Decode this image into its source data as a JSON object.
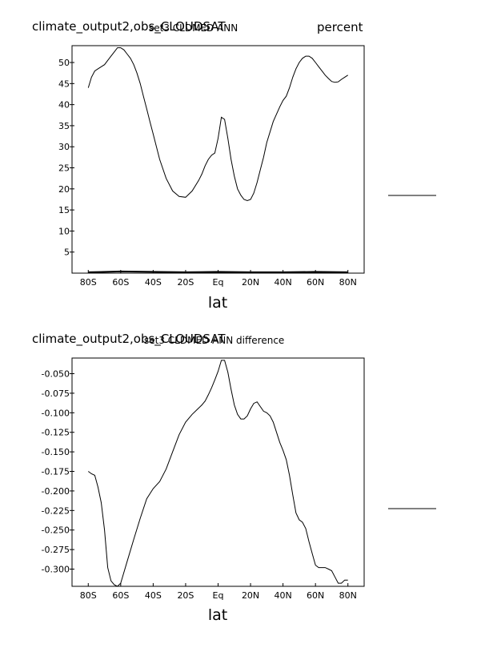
{
  "chart_data": [
    {
      "type": "line",
      "title": "climate_output2,obs_CLOUDSAT",
      "subtitle": "set3 CLDMED ANN",
      "units": "percent",
      "xlabel": "lat",
      "ylabel": "",
      "xlim": [
        -90,
        90
      ],
      "ylim": [
        0,
        54
      ],
      "x_tick_values": [
        -80,
        -60,
        -40,
        -20,
        0,
        20,
        40,
        60,
        80
      ],
      "x_tick_labels": [
        "80S",
        "60S",
        "40S",
        "20S",
        "Eq",
        "20N",
        "40N",
        "60N",
        "80N"
      ],
      "y_ticks": [
        5,
        10,
        15,
        20,
        25,
        30,
        35,
        40,
        45,
        50
      ],
      "series": [
        {
          "x": [
            -80,
            -78,
            -76,
            -74,
            -72,
            -70,
            -68,
            -66,
            -64,
            -62,
            -60,
            -58,
            -56,
            -54,
            -52,
            -50,
            -48,
            -46,
            -44,
            -42,
            -40,
            -36,
            -32,
            -28,
            -24,
            -20,
            -16,
            -12,
            -10,
            -8,
            -6,
            -4,
            -2,
            0,
            2,
            4,
            6,
            8,
            10,
            12,
            14,
            16,
            18,
            20,
            22,
            24,
            26,
            28,
            30,
            34,
            38,
            40,
            42,
            44,
            46,
            48,
            50,
            52,
            54,
            56,
            58,
            60,
            62,
            64,
            66,
            68,
            70,
            72,
            74,
            76,
            78,
            80
          ],
          "y": [
            44,
            46.5,
            48,
            48.5,
            49,
            49.5,
            50.5,
            51.5,
            52.5,
            53.5,
            53.5,
            53,
            52,
            51,
            49.5,
            47.5,
            45,
            42,
            39,
            36,
            33,
            27,
            22.5,
            19.5,
            18.2,
            18,
            19.5,
            22,
            23.5,
            25.5,
            27,
            28,
            28.5,
            32,
            37,
            36.5,
            32,
            27,
            23,
            20,
            18.5,
            17.5,
            17.2,
            17.5,
            19,
            21.5,
            24.5,
            27.5,
            31,
            36,
            39.5,
            41,
            42,
            44,
            46.5,
            48.5,
            50,
            51,
            51.5,
            51.5,
            51,
            50,
            49,
            48,
            47,
            46.2,
            45.5,
            45.3,
            45.4,
            46,
            46.5,
            47
          ]
        },
        {
          "x": [
            -80,
            -60,
            -40,
            -20,
            0,
            20,
            40,
            60,
            80
          ],
          "y": [
            0.2,
            0.4,
            0.3,
            0.2,
            0.3,
            0.2,
            0.2,
            0.3,
            0.2
          ]
        }
      ]
    },
    {
      "type": "line",
      "title": "climate_output2,obs_CLOUDSAT",
      "subtitle": "set3 CLDMED ANN difference",
      "units": "",
      "xlabel": "lat",
      "ylabel": "",
      "xlim": [
        -90,
        90
      ],
      "ylim": [
        -0.322,
        -0.03
      ],
      "x_tick_values": [
        -80,
        -60,
        -40,
        -20,
        0,
        20,
        40,
        60,
        80
      ],
      "x_tick_labels": [
        "80S",
        "60S",
        "40S",
        "20S",
        "Eq",
        "20N",
        "40N",
        "60N",
        "80N"
      ],
      "y_ticks": [
        -0.05,
        -0.075,
        -0.1,
        -0.125,
        -0.15,
        -0.175,
        -0.2,
        -0.225,
        -0.25,
        -0.275,
        -0.3
      ],
      "y_tick_labels": [
        "-0.050",
        "-0.075",
        "-0.100",
        "-0.125",
        "-0.150",
        "-0.175",
        "-0.200",
        "-0.225",
        "-0.250",
        "-0.275",
        "-0.300"
      ],
      "series": [
        {
          "x": [
            -80,
            -78,
            -76,
            -74,
            -72,
            -70,
            -68,
            -66,
            -64,
            -62,
            -60,
            -56,
            -52,
            -48,
            -44,
            -40,
            -36,
            -32,
            -28,
            -24,
            -20,
            -16,
            -12,
            -10,
            -8,
            -6,
            -4,
            -2,
            0,
            2,
            4,
            6,
            8,
            10,
            12,
            14,
            16,
            18,
            20,
            22,
            24,
            26,
            28,
            30,
            32,
            34,
            36,
            38,
            40,
            42,
            44,
            46,
            48,
            50,
            52,
            54,
            56,
            58,
            60,
            62,
            64,
            66,
            68,
            70,
            72,
            74,
            76,
            78,
            80
          ],
          "y": [
            -0.175,
            -0.178,
            -0.18,
            -0.195,
            -0.215,
            -0.25,
            -0.298,
            -0.315,
            -0.32,
            -0.322,
            -0.318,
            -0.29,
            -0.262,
            -0.235,
            -0.21,
            -0.197,
            -0.188,
            -0.172,
            -0.15,
            -0.128,
            -0.112,
            -0.102,
            -0.094,
            -0.09,
            -0.085,
            -0.077,
            -0.068,
            -0.058,
            -0.047,
            -0.033,
            -0.033,
            -0.048,
            -0.07,
            -0.09,
            -0.102,
            -0.108,
            -0.108,
            -0.104,
            -0.095,
            -0.088,
            -0.086,
            -0.092,
            -0.098,
            -0.1,
            -0.104,
            -0.112,
            -0.125,
            -0.138,
            -0.148,
            -0.16,
            -0.18,
            -0.205,
            -0.228,
            -0.237,
            -0.24,
            -0.248,
            -0.265,
            -0.28,
            -0.295,
            -0.298,
            -0.298,
            -0.298,
            -0.3,
            -0.302,
            -0.31,
            -0.318,
            -0.318,
            -0.314,
            -0.314
          ]
        }
      ]
    }
  ]
}
